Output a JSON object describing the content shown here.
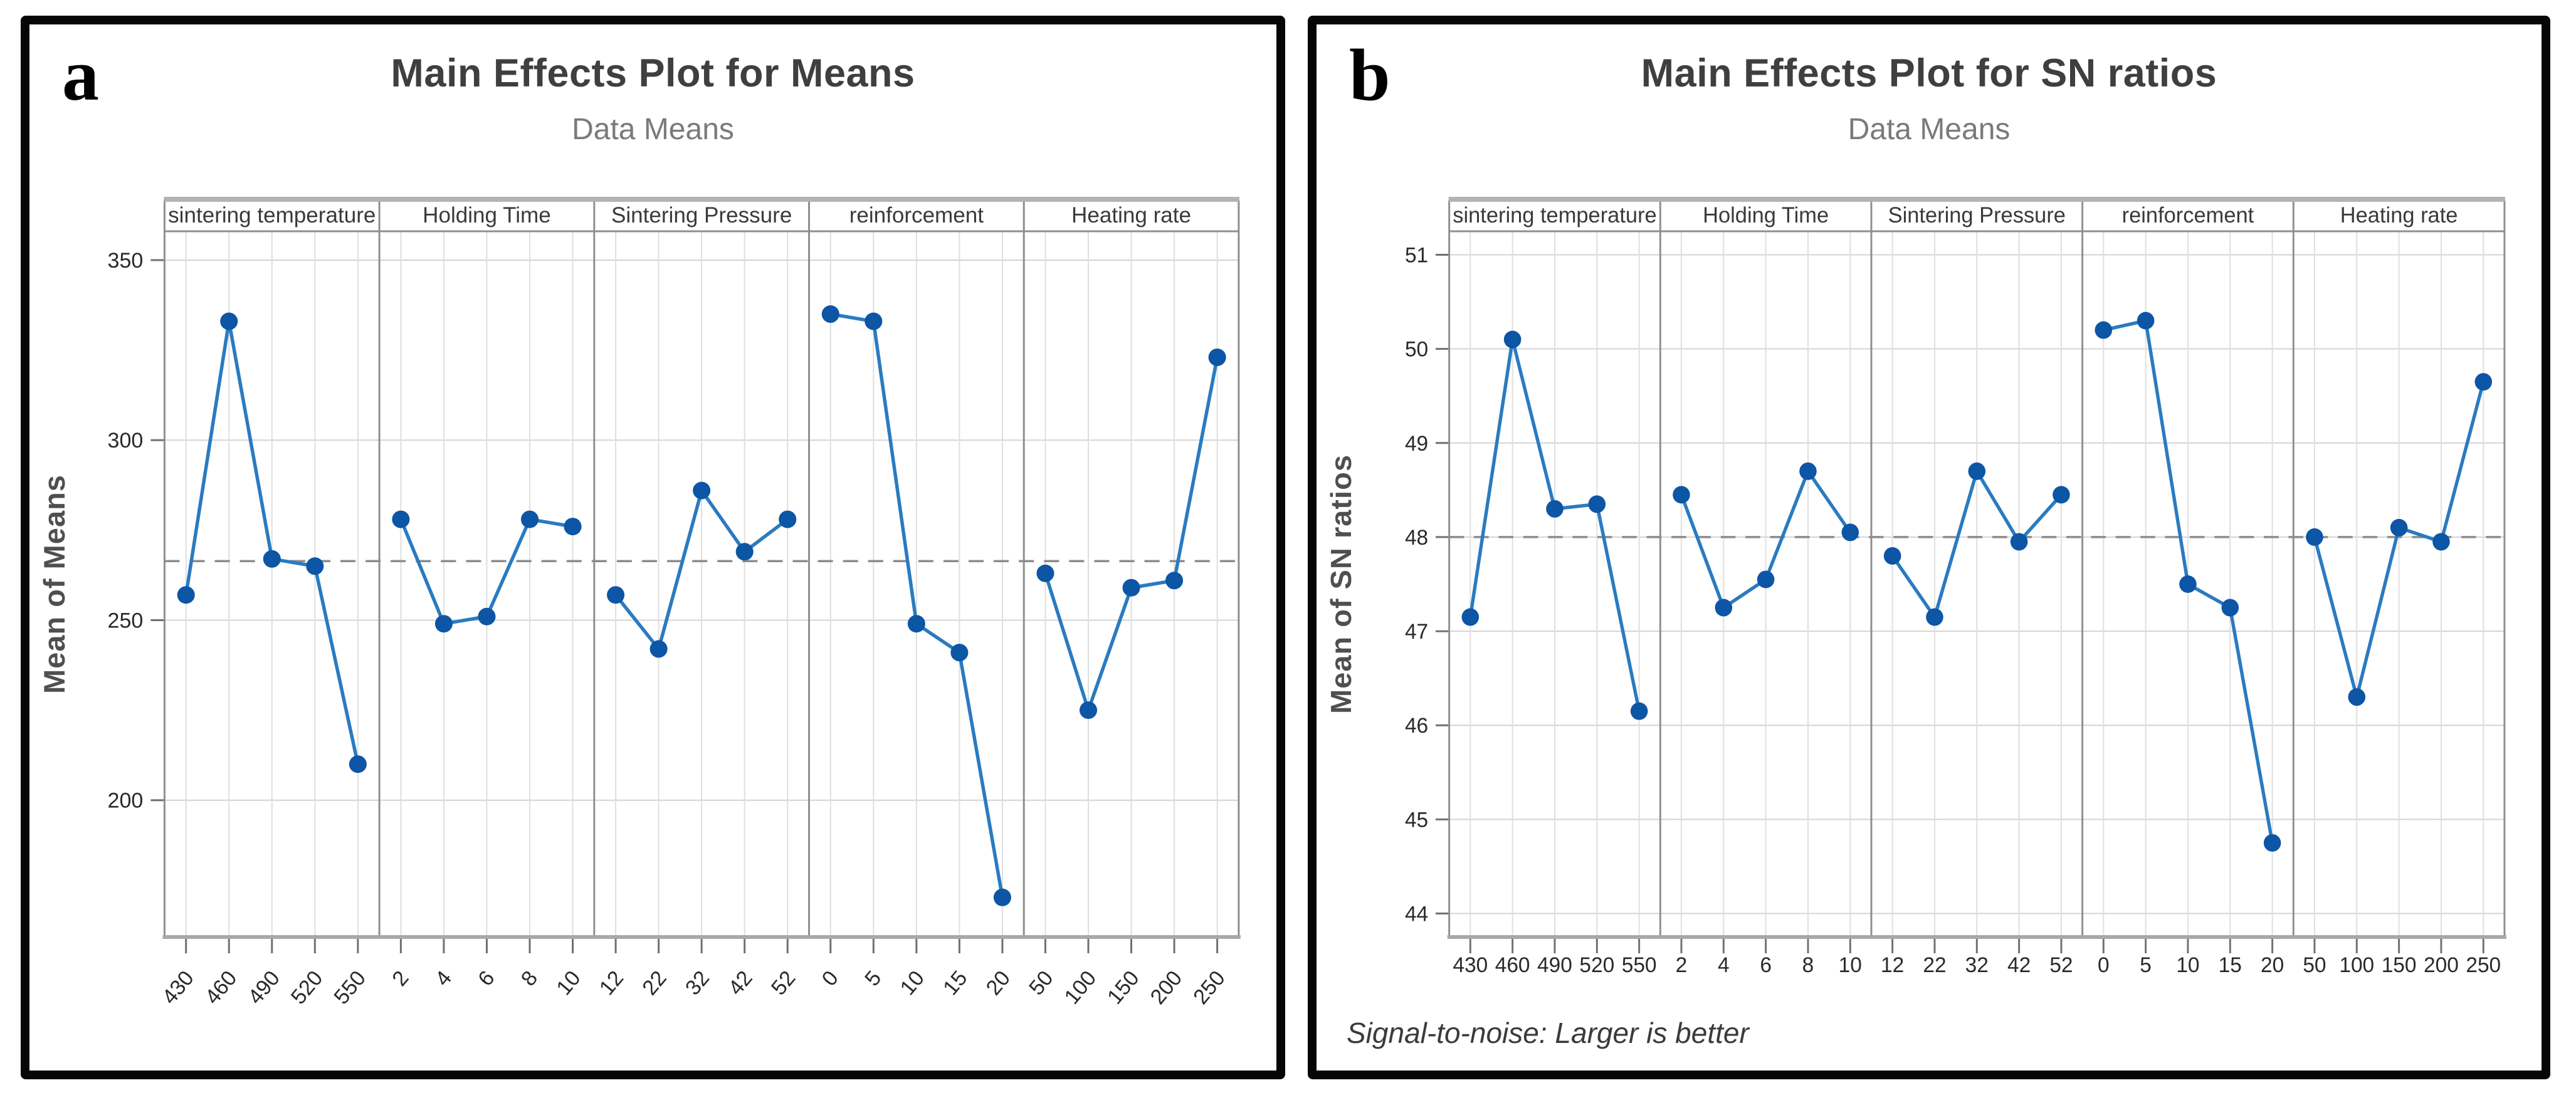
{
  "chart_data": [
    {
      "type": "line",
      "panel_label": "a",
      "title": "Main Effects Plot for Means",
      "subtitle": "Data Means",
      "ylabel": "Mean of Means",
      "footer": "",
      "ref_line": 266.4,
      "ylim": [
        162,
        358
      ],
      "yticks": [
        350,
        300,
        250,
        200
      ],
      "x_label_rotation": -50,
      "grid": true,
      "legend": false,
      "colors": {
        "line": "#2a7bc0",
        "marker": "#0d55a5",
        "grid": "#d4d4d4",
        "refline": "#8c8c8c"
      },
      "factors": [
        {
          "name": "sintering temperature",
          "categories": [
            "430",
            "460",
            "490",
            "520",
            "550"
          ],
          "values": [
            257,
            333,
            267,
            265,
            210
          ]
        },
        {
          "name": "Holding Time",
          "categories": [
            "2",
            "4",
            "6",
            "8",
            "10"
          ],
          "values": [
            278,
            249,
            251,
            278,
            276
          ]
        },
        {
          "name": "Sintering Pressure",
          "categories": [
            "12",
            "22",
            "32",
            "42",
            "52"
          ],
          "values": [
            257,
            242,
            286,
            269,
            278
          ]
        },
        {
          "name": "reinforcement",
          "categories": [
            "0",
            "5",
            "10",
            "15",
            "20"
          ],
          "values": [
            335,
            333,
            249,
            241,
            173
          ]
        },
        {
          "name": "Heating rate",
          "categories": [
            "50",
            "100",
            "150",
            "200",
            "250"
          ],
          "values": [
            263,
            225,
            259,
            261,
            323
          ]
        }
      ]
    },
    {
      "type": "line",
      "panel_label": "b",
      "title": "Main Effects Plot for SN ratios",
      "subtitle": "Data Means",
      "ylabel": "Mean of SN ratios",
      "footer": "Signal-to-noise: Larger is better",
      "ref_line": 48,
      "ylim": [
        43.75,
        51.25
      ],
      "yticks": [
        51,
        50,
        49,
        48,
        47,
        46,
        45,
        44
      ],
      "x_label_rotation": 0,
      "grid": true,
      "legend": false,
      "colors": {
        "line": "#2a7bc0",
        "marker": "#0d55a5",
        "grid": "#d4d4d4",
        "refline": "#8c8c8c"
      },
      "factors": [
        {
          "name": "sintering temperature",
          "categories": [
            "430",
            "460",
            "490",
            "520",
            "550"
          ],
          "values": [
            47.15,
            50.1,
            48.3,
            48.35,
            46.15
          ]
        },
        {
          "name": "Holding Time",
          "categories": [
            "2",
            "4",
            "6",
            "8",
            "10"
          ],
          "values": [
            48.45,
            47.25,
            47.55,
            48.7,
            48.05
          ]
        },
        {
          "name": "Sintering Pressure",
          "categories": [
            "12",
            "22",
            "32",
            "42",
            "52"
          ],
          "values": [
            47.8,
            47.15,
            48.7,
            47.95,
            48.45
          ]
        },
        {
          "name": "reinforcement",
          "categories": [
            "0",
            "5",
            "10",
            "15",
            "20"
          ],
          "values": [
            50.2,
            50.3,
            47.5,
            47.25,
            44.75
          ]
        },
        {
          "name": "Heating rate",
          "categories": [
            "50",
            "100",
            "150",
            "200",
            "250"
          ],
          "values": [
            48.0,
            46.3,
            48.1,
            47.95,
            49.65
          ]
        }
      ]
    }
  ]
}
